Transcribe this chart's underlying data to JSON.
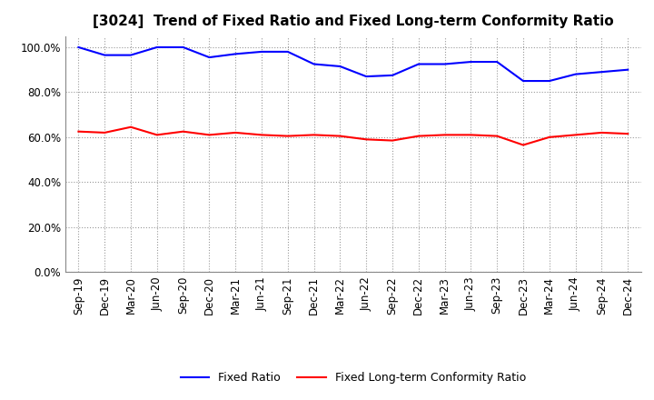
{
  "title": "[3024]  Trend of Fixed Ratio and Fixed Long-term Conformity Ratio",
  "x_labels": [
    "Sep-19",
    "Dec-19",
    "Mar-20",
    "Jun-20",
    "Sep-20",
    "Dec-20",
    "Mar-21",
    "Jun-21",
    "Sep-21",
    "Dec-21",
    "Mar-22",
    "Jun-22",
    "Sep-22",
    "Dec-22",
    "Mar-23",
    "Jun-23",
    "Sep-23",
    "Dec-23",
    "Mar-24",
    "Jun-24",
    "Sep-24",
    "Dec-24"
  ],
  "fixed_ratio": [
    100.0,
    96.5,
    96.5,
    100.0,
    100.0,
    95.5,
    97.0,
    98.0,
    98.0,
    92.5,
    91.5,
    87.0,
    87.5,
    92.5,
    92.5,
    93.5,
    93.5,
    85.0,
    85.0,
    88.0,
    89.0,
    90.0
  ],
  "fixed_lt_ratio": [
    62.5,
    62.0,
    64.5,
    61.0,
    62.5,
    61.0,
    62.0,
    61.0,
    60.5,
    61.0,
    60.5,
    59.0,
    58.5,
    60.5,
    61.0,
    61.0,
    60.5,
    56.5,
    60.0,
    61.0,
    62.0,
    61.5
  ],
  "line_color_fixed": "#0000FF",
  "line_color_lt": "#FF0000",
  "ylim": [
    0,
    105
  ],
  "yticks": [
    0,
    20,
    40,
    60,
    80,
    100
  ],
  "ytick_labels": [
    "0.0%",
    "20.0%",
    "40.0%",
    "60.0%",
    "80.0%",
    "100.0%"
  ],
  "legend_fixed": "Fixed Ratio",
  "legend_lt": "Fixed Long-term Conformity Ratio",
  "bg_color": "#ffffff",
  "grid_color": "#999999",
  "title_fontsize": 11,
  "axis_fontsize": 8.5,
  "legend_fontsize": 9
}
